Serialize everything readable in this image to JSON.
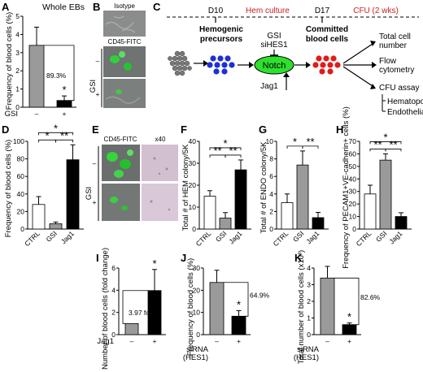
{
  "panels": {
    "A": {
      "label": "A",
      "title": "Whole EBs",
      "ylabel": "Frequency of blood cells (%)",
      "ylim": [
        0,
        5
      ],
      "yticks": [
        "0",
        "1",
        "2",
        "3",
        "4",
        "5"
      ],
      "xname": "GSI",
      "categories": [
        "–",
        "+"
      ],
      "values": [
        3.4,
        0.37
      ],
      "errors": [
        1.0,
        0.25
      ],
      "colors": [
        "#9a9a9a",
        "#000000"
      ],
      "annotation": "89.3%",
      "sig": "*"
    },
    "B": {
      "label": "B",
      "isotype": "Isotype",
      "stain": "CD45-FITC",
      "group": "GSI",
      "minus": "–",
      "plus": "+"
    },
    "C": {
      "label": "C",
      "d10": "D10",
      "hem_culture": "Hem culture",
      "d17": "D17",
      "cfu": "CFU (2 wks)",
      "hem_prec_1": "Hemogenic",
      "hem_prec_2": "precursors",
      "gsi": "GSI",
      "sihes1": "siHES1",
      "notch": "Notch",
      "jag1": "Jag1",
      "committed_1": "Committed",
      "committed_2": "blood cells",
      "out_total_1": "Total cell",
      "out_total_2": "number",
      "out_flow_1": "Flow",
      "out_flow_2": "cytometry",
      "out_cfu": "CFU assay",
      "out_hem": "Hematopoietic",
      "out_endo": "Endothelial"
    },
    "D": {
      "label": "D",
      "ylabel": "Frequency of blood cells (%)",
      "ylim": [
        0,
        100
      ],
      "yticks": [
        "0",
        "20",
        "40",
        "60",
        "80",
        "100"
      ],
      "categories": [
        "CTRL",
        "GSI",
        "Jag1"
      ],
      "values": [
        28,
        6,
        79
      ],
      "errors": [
        9,
        2,
        17
      ],
      "colors": [
        "#ffffff",
        "#9a9a9a",
        "#000000"
      ],
      "sig_top": "*",
      "sig_left": "*",
      "sig_right": "**"
    },
    "E": {
      "label": "E",
      "stain": "CD45-FITC",
      "mag": "x40",
      "group": "GSI",
      "minus": "–",
      "plus": "+"
    },
    "F": {
      "label": "F",
      "ylabel": "Total # of HEM colony/5K",
      "ylim": [
        0,
        40
      ],
      "yticks": [
        "0",
        "10",
        "20",
        "30",
        "40"
      ],
      "categories": [
        "CTRL",
        "GSI",
        "Jag1"
      ],
      "values": [
        15,
        5,
        27
      ],
      "errors": [
        2.5,
        2.5,
        4.5
      ],
      "colors": [
        "#ffffff",
        "#9a9a9a",
        "#000000"
      ],
      "sig_top": "*",
      "sig_left": "**",
      "sig_right": "**"
    },
    "G": {
      "label": "G",
      "ylabel": "Total # of ENDO colony/5K",
      "ylim": [
        0,
        10
      ],
      "yticks": [
        "0",
        "2",
        "4",
        "6",
        "8",
        "10"
      ],
      "categories": [
        "CTRL",
        "GSI",
        "Jag1"
      ],
      "values": [
        3,
        7.3,
        1.3
      ],
      "errors": [
        1.0,
        1.6,
        0.6
      ],
      "colors": [
        "#ffffff",
        "#9a9a9a",
        "#000000"
      ],
      "sig_left": "*",
      "sig_right": "**"
    },
    "H": {
      "label": "H",
      "ylabel": "Frequency of PECAM1+VE-cadherin+ cells (%)",
      "ylim": [
        0,
        70
      ],
      "yticks": [
        "0",
        "10",
        "20",
        "30",
        "40",
        "50",
        "60",
        "70"
      ],
      "categories": [
        "CTRL",
        "GSI",
        "Jag1"
      ],
      "values": [
        28,
        55,
        10
      ],
      "errors": [
        7,
        5,
        3
      ],
      "colors": [
        "#ffffff",
        "#9a9a9a",
        "#000000"
      ],
      "sig_top": "*",
      "sig_left": "**",
      "sig_right": "**"
    },
    "I": {
      "label": "I",
      "ylabel": "Number of blood cells (fold change)",
      "ylim": [
        0,
        6
      ],
      "yticks": [
        "0",
        "2",
        "4",
        "6"
      ],
      "xname": "Jag1",
      "categories": [
        "–",
        "+"
      ],
      "values": [
        1,
        3.97
      ],
      "errors": [
        0,
        1.9
      ],
      "colors": [
        "#9a9a9a",
        "#000000"
      ],
      "annotation": "3.97 fold",
      "sig": "*"
    },
    "J": {
      "label": "J",
      "ylabel": "Frequency of blood cells (%)",
      "ylim": [
        0,
        30
      ],
      "yticks": [
        "0",
        "10",
        "20",
        "30"
      ],
      "xname_1": "siRNA",
      "xname_2": "(HES1)",
      "categories": [
        "–",
        "+"
      ],
      "values": [
        23.5,
        8.3
      ],
      "errors": [
        5.5,
        2.5
      ],
      "colors": [
        "#9a9a9a",
        "#000000"
      ],
      "annotation": "64.9%",
      "sig": "*"
    },
    "K": {
      "label": "K",
      "ylabel": "Total number of blood cells (x10³)",
      "ylim": [
        0,
        4
      ],
      "yticks": [
        "0",
        "1",
        "2",
        "3",
        "4"
      ],
      "xname_1": "siRNA",
      "xname_2": "(HES1)",
      "categories": [
        "–",
        "+"
      ],
      "values": [
        3.4,
        0.6
      ],
      "errors": [
        0.7,
        0.1
      ],
      "colors": [
        "#9a9a9a",
        "#000000"
      ],
      "annotation": "82.6%",
      "sig": "*"
    }
  },
  "chart_data": [
    {
      "type": "bar",
      "panel": "A",
      "title": "Whole EBs",
      "ylabel": "Frequency of blood cells (%)",
      "categories": [
        "–",
        "+"
      ],
      "values": [
        3.4,
        0.37
      ],
      "ylim": [
        0,
        5
      ]
    },
    {
      "type": "bar",
      "panel": "D",
      "ylabel": "Frequency of blood cells (%)",
      "categories": [
        "CTRL",
        "GSI",
        "Jag1"
      ],
      "values": [
        28,
        6,
        79
      ],
      "ylim": [
        0,
        100
      ]
    },
    {
      "type": "bar",
      "panel": "F",
      "ylabel": "Total # of HEM colony/5K",
      "categories": [
        "CTRL",
        "GSI",
        "Jag1"
      ],
      "values": [
        15,
        5,
        27
      ],
      "ylim": [
        0,
        40
      ]
    },
    {
      "type": "bar",
      "panel": "G",
      "ylabel": "Total # of ENDO colony/5K",
      "categories": [
        "CTRL",
        "GSI",
        "Jag1"
      ],
      "values": [
        3,
        7.3,
        1.3
      ],
      "ylim": [
        0,
        10
      ]
    },
    {
      "type": "bar",
      "panel": "H",
      "ylabel": "Frequency of PECAM1+VE-cadherin+ cells (%)",
      "categories": [
        "CTRL",
        "GSI",
        "Jag1"
      ],
      "values": [
        28,
        55,
        10
      ],
      "ylim": [
        0,
        70
      ]
    },
    {
      "type": "bar",
      "panel": "I",
      "ylabel": "Number of blood cells (fold change)",
      "categories": [
        "–",
        "+"
      ],
      "values": [
        1,
        3.97
      ],
      "ylim": [
        0,
        6
      ]
    },
    {
      "type": "bar",
      "panel": "J",
      "ylabel": "Frequency of blood cells (%)",
      "categories": [
        "–",
        "+"
      ],
      "values": [
        23.5,
        8.3
      ],
      "ylim": [
        0,
        30
      ]
    },
    {
      "type": "bar",
      "panel": "K",
      "ylabel": "Total number of blood cells (x10³)",
      "categories": [
        "–",
        "+"
      ],
      "values": [
        3.4,
        0.6
      ],
      "ylim": [
        0,
        4
      ]
    }
  ]
}
